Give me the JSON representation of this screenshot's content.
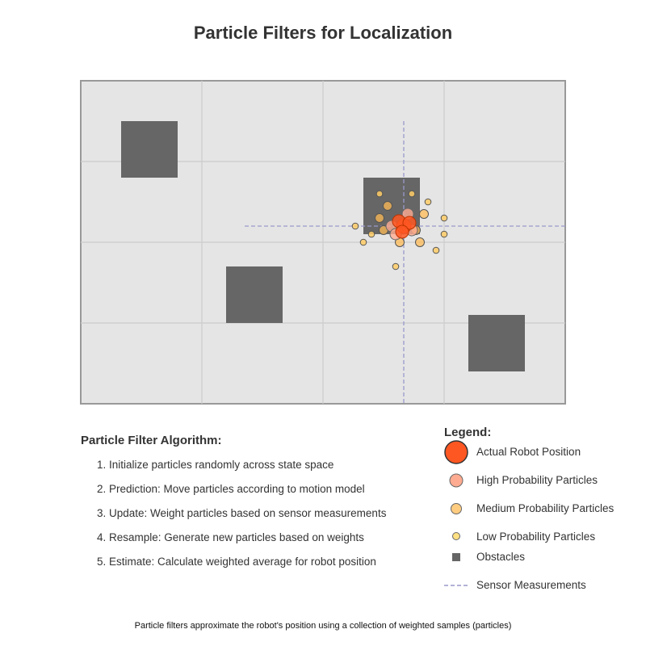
{
  "title": "Particle Filters for Localization",
  "colors": {
    "map_background": "#e5e5e5",
    "map_border": "#999999",
    "grid": "#cccccc",
    "obstacle": "#666666",
    "robot": "#ff5722",
    "high_particle": "#ffab91",
    "medium_particle": "#ffcc80",
    "low_particle": "#ffe082",
    "sensor_line": "#9999cc"
  },
  "algorithm": {
    "heading": "Particle Filter Algorithm:",
    "steps": [
      "1. Initialize particles randomly across state space",
      "2. Prediction: Move particles according to motion model",
      "3. Update: Weight particles based on sensor measurements",
      "4. Resample: Generate new particles based on weights",
      "5. Estimate: Calculate weighted average for robot position"
    ]
  },
  "legend": {
    "heading": "Legend:",
    "items": [
      {
        "label": "Actual Robot Position",
        "icon": "robot-marker-icon"
      },
      {
        "label": "High Probability Particles",
        "icon": "high-particle-icon"
      },
      {
        "label": "Medium Probability Particles",
        "icon": "medium-particle-icon"
      },
      {
        "label": "Low Probability Particles",
        "icon": "low-particle-icon"
      },
      {
        "label": "Obstacles",
        "icon": "obstacle-icon"
      },
      {
        "label": "Sensor Measurements",
        "icon": "sensor-line-icon"
      }
    ]
  },
  "caption": "Particle filters approximate the robot's position using a collection of weighted samples (particles)"
}
